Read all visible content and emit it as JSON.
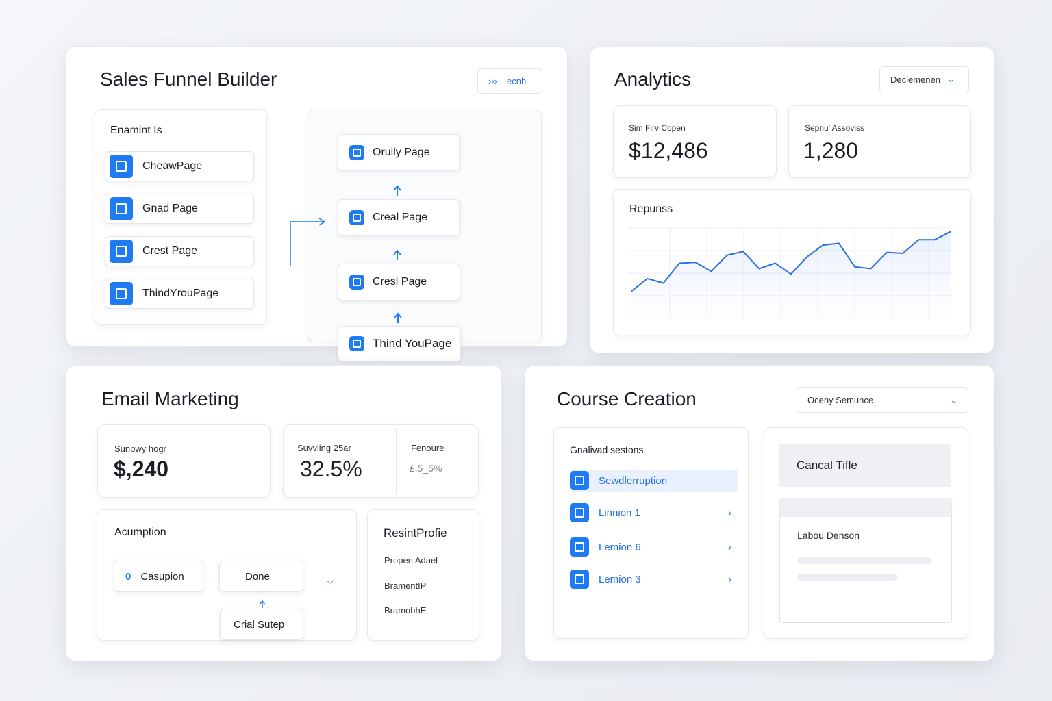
{
  "funnel": {
    "title": "Sales Funnel Builder",
    "search": "ecnh",
    "elements": {
      "title": "Enamint Is",
      "items": [
        "CheawPage",
        "Gnad Page",
        "Crest Page",
        "ThindYrouPage"
      ]
    },
    "flow": [
      "Oruily Page",
      "Creal Page",
      "Cresl Page",
      "Thind YouPage"
    ]
  },
  "analytics": {
    "title": "Analytics",
    "dropdown": "Declemenen",
    "stats": [
      {
        "label": "Sim Firv Copen",
        "value": "$12,486"
      },
      {
        "label": "Sepnu' Assoviss",
        "value": "1,280"
      }
    ],
    "chart": {
      "type": "line",
      "title": "Repunss",
      "values": [
        30,
        44,
        39,
        61,
        62,
        52,
        70,
        74,
        55,
        61,
        49,
        68,
        81,
        83,
        57,
        55,
        73,
        72,
        87,
        87,
        96
      ],
      "color": "#2a6fe0",
      "ylim": [
        0,
        100
      ],
      "yticks": [
        0,
        25,
        50,
        75,
        100
      ],
      "grid": true
    }
  },
  "email": {
    "title": "Email Marketing",
    "stats": [
      {
        "label": "Sunpwy hogr",
        "value": "$,240"
      },
      {
        "label": "Suvviing 25ar",
        "value": "32.5%"
      },
      {
        "label": "Fenoure",
        "value": "£.5_5%"
      }
    ],
    "automation": {
      "title": "Acumption",
      "nodes": [
        "Casupion",
        "Done",
        "Crial Sutep"
      ]
    },
    "profile": {
      "title": "ResintProfie",
      "items": [
        "Propen Adael",
        "BramentIP",
        "BramohhE"
      ]
    }
  },
  "course": {
    "title": "Course Creation",
    "dropdown": "Oceny Semunce",
    "lessons": {
      "title": "Gnalivad sestons",
      "items": [
        "Sewdlerruption",
        "Linnion 1",
        "Lemion 6",
        "Lemion 3"
      ]
    },
    "preview": {
      "title": "Cancal Tifle",
      "subtitle": "Labou Denson"
    }
  }
}
